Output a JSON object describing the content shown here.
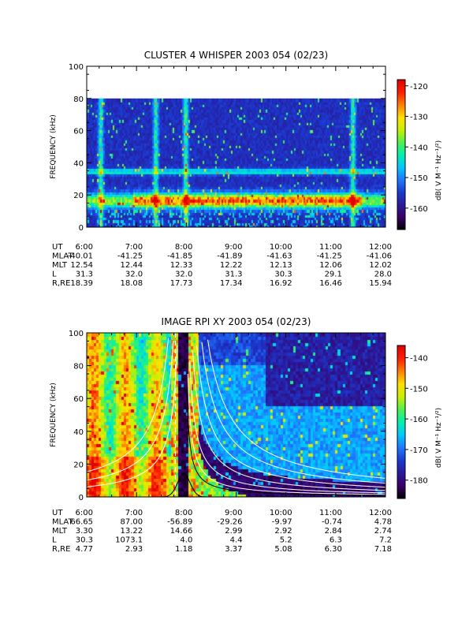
{
  "colors": {
    "colormap": [
      "#000000",
      "#3a0066",
      "#2a1a9a",
      "#1a3ad0",
      "#1f77ff",
      "#00c8ff",
      "#00f0b0",
      "#50f050",
      "#c8f000",
      "#ffe000",
      "#ff8000",
      "#ff2000",
      "#e00000"
    ],
    "curve_white": "#ffffff",
    "curve_black": "#000000"
  },
  "chart_data": [
    {
      "type": "heatmap",
      "title": "CLUSTER 4 WHISPER 2003 054 (02/23)",
      "ylabel": "FREQUENCY (kHz)",
      "ylim": [
        0,
        100
      ],
      "yticks": [
        "0",
        "20",
        "40",
        "60",
        "80",
        "100"
      ],
      "data_ylim": [
        0,
        80
      ],
      "xlim": [
        6.0,
        12.0
      ],
      "xticks": [
        "6:00",
        "7:00",
        "8:00",
        "9:00",
        "10:00",
        "11:00",
        "12:00"
      ],
      "colorbar": {
        "label": "dB( V M⁻¹ Hz⁻¹/²)",
        "range": [
          -167,
          -118
        ],
        "ticks": [
          "-120",
          "-130",
          "-140",
          "-150",
          "-160"
        ]
      },
      "features": {
        "band_low_kHz": [
          14,
          20
        ],
        "band_high_kHz": [
          34,
          36
        ],
        "vertical_bursts_UT": [
          6.3,
          7.4,
          8.0,
          11.35
        ]
      },
      "ephemeris": {
        "labels": [
          "UT",
          "MLAT",
          "MLT",
          "L",
          "R,RE"
        ],
        "rows": [
          [
            "6:00",
            "7:00",
            "8:00",
            "9:00",
            "10:00",
            "11:00",
            "12:00"
          ],
          [
            "-40.01",
            "-41.25",
            "-41.85",
            "-41.89",
            "-41.63",
            "-41.25",
            "-41.06"
          ],
          [
            "12.54",
            "12.44",
            "12.33",
            "12.22",
            "12.13",
            "12.06",
            "12.02"
          ],
          [
            "31.3",
            "32.0",
            "32.0",
            "31.3",
            "30.3",
            "29.1",
            "28.0"
          ],
          [
            "18.39",
            "18.08",
            "17.73",
            "17.34",
            "16.92",
            "16.46",
            "15.94"
          ]
        ]
      }
    },
    {
      "type": "heatmap",
      "title": "IMAGE RPI XY 2003 054 (02/23)",
      "ylabel": "FREQUENCY (kHz)",
      "ylim": [
        0,
        100
      ],
      "yticks": [
        "0",
        "20",
        "40",
        "60",
        "80",
        "100"
      ],
      "xlim": [
        6.0,
        12.0
      ],
      "xticks": [
        "6:00",
        "7:00",
        "8:00",
        "9:00",
        "10:00",
        "11:00",
        "12:00"
      ],
      "colorbar": {
        "label": "dB( V M⁻¹ Hz⁻¹/²)",
        "range": [
          -186,
          -136
        ],
        "ticks": [
          "-140",
          "-150",
          "-160",
          "-170",
          "-180"
        ]
      },
      "features": {
        "perigee_UT": 7.95,
        "marker_UT": 7.78
      },
      "ephemeris": {
        "labels": [
          "UT",
          "MLAT",
          "MLT",
          "L",
          "R,RE"
        ],
        "rows": [
          [
            "6:00",
            "7:00",
            "8:00",
            "9:00",
            "10:00",
            "11:00",
            "12:00"
          ],
          [
            "66.65",
            "87.00",
            "-56.89",
            "-29.26",
            "-9.97",
            "-0.74",
            "4.78"
          ],
          [
            "3.30",
            "13.22",
            "14.66",
            "2.99",
            "2.92",
            "2.84",
            "2.74"
          ],
          [
            "30.3",
            "1073.1",
            "4.0",
            "4.4",
            "5.2",
            "6.3",
            "7.2"
          ],
          [
            "4.77",
            "2.93",
            "1.18",
            "3.37",
            "5.08",
            "6.30",
            "7.18"
          ]
        ]
      }
    }
  ]
}
